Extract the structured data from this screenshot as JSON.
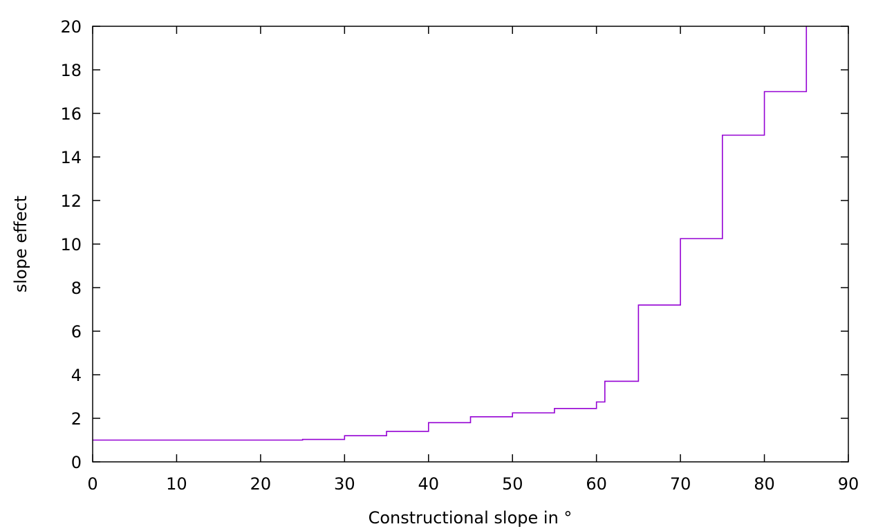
{
  "chart_data": {
    "type": "line",
    "step": "post",
    "xlabel": "Constructional slope in °",
    "ylabel": "slope effect",
    "xlim": [
      0,
      90
    ],
    "ylim": [
      0,
      20
    ],
    "xticks": [
      0,
      10,
      20,
      30,
      40,
      50,
      60,
      70,
      80,
      90
    ],
    "yticks": [
      0,
      2,
      4,
      6,
      8,
      10,
      12,
      14,
      16,
      18,
      20
    ],
    "grid": false,
    "series": [
      {
        "color": "#9400d3",
        "x": [
          0,
          25,
          30,
          35,
          40,
          45,
          50,
          55,
          60,
          61,
          65,
          70,
          75,
          80,
          85
        ],
        "y": [
          1.0,
          1.03,
          1.2,
          1.4,
          1.8,
          2.07,
          2.25,
          2.45,
          2.75,
          3.7,
          7.2,
          10.25,
          15.0,
          17.0,
          20.0
        ]
      }
    ]
  }
}
